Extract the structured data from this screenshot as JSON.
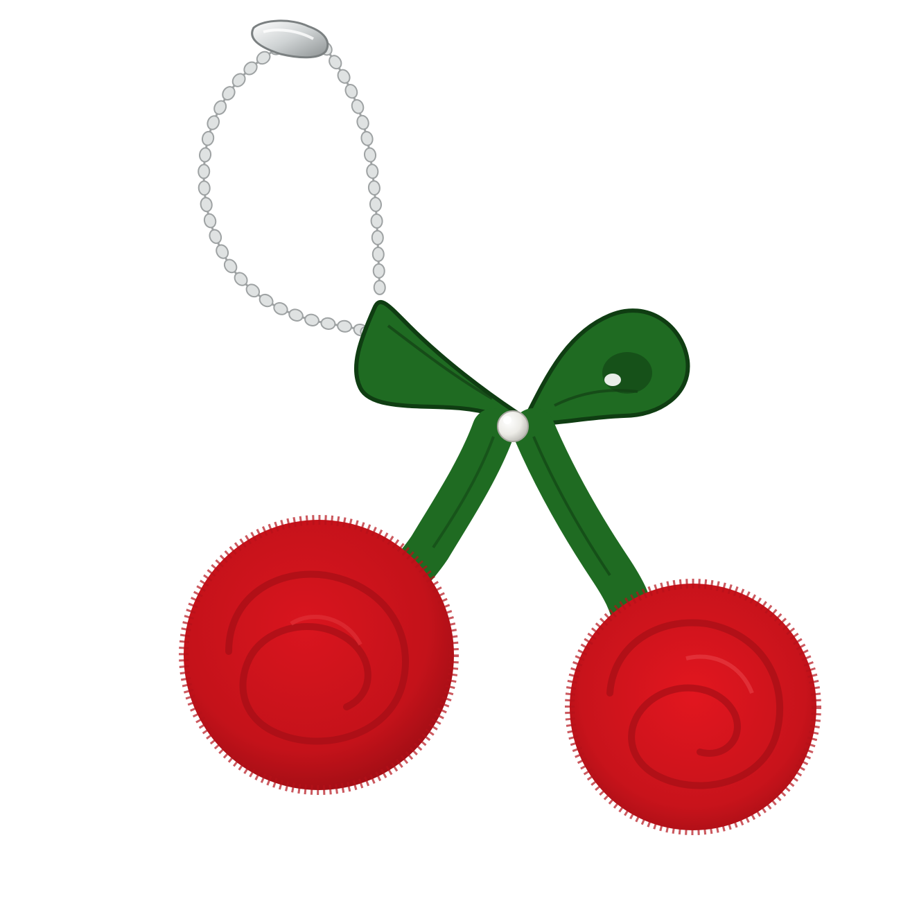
{
  "photo": {
    "background_color": "#ffffff",
    "subject": {
      "chain_color": "#dfe2e2",
      "chain_shadow_color": "#9ea2a3",
      "bow_color": "#1f6b22",
      "bow_dark_color": "#0f3d12",
      "cherry_color": "#c4121a",
      "cherry_dark_color": "#8e0c12",
      "pearl_color": "#f3f1ec"
    }
  }
}
